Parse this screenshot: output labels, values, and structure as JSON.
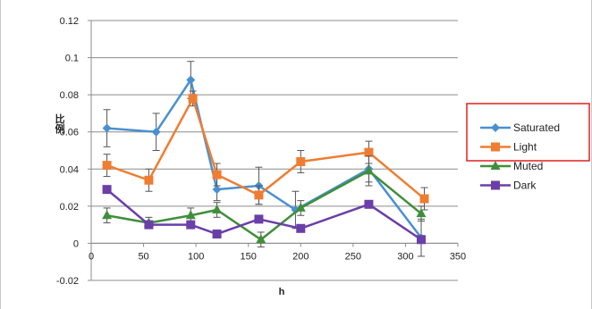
{
  "chart_data": {
    "type": "line",
    "title": "",
    "xlabel": "h",
    "ylabel": "比例",
    "xlim": [
      0,
      350
    ],
    "ylim": [
      -0.02,
      0.12
    ],
    "x_ticks": [
      0,
      50,
      100,
      150,
      200,
      250,
      300,
      350
    ],
    "y_ticks": [
      -0.02,
      0,
      0.02,
      0.04,
      0.06,
      0.08,
      0.1,
      0.12
    ],
    "y_tick_labels": [
      "-0.02",
      "0",
      "0.02",
      "0.04",
      "0.06",
      "0.08",
      "0.1",
      "0.12"
    ],
    "grid": "horizontal",
    "legend_position": "right",
    "series": [
      {
        "name": "Saturated",
        "color": "#4a90d0",
        "marker": "diamond",
        "x": [
          15,
          62,
          95,
          120,
          160,
          195,
          265,
          315
        ],
        "y": [
          0.062,
          0.06,
          0.088,
          0.029,
          0.031,
          0.018,
          0.04,
          0.003
        ],
        "err": [
          0.01,
          0.01,
          0.01,
          0.006,
          0.01,
          0.01,
          0.007,
          0.01
        ]
      },
      {
        "name": "Light",
        "color": "#ef7d31",
        "marker": "square",
        "x": [
          15,
          55,
          97,
          120,
          160,
          200,
          265,
          318
        ],
        "y": [
          0.042,
          0.034,
          0.078,
          0.037,
          0.026,
          0.044,
          0.049,
          0.024
        ],
        "err": [
          0.006,
          0.006,
          0.004,
          0.006,
          0.005,
          0.006,
          0.006,
          0.006
        ]
      },
      {
        "name": "Muted",
        "color": "#3f8f3a",
        "marker": "triangle",
        "x": [
          15,
          55,
          95,
          120,
          162,
          200,
          265,
          315
        ],
        "y": [
          0.015,
          0.011,
          0.015,
          0.018,
          0.002,
          0.019,
          0.039,
          0.016
        ],
        "err": [
          0.004,
          0.003,
          0.004,
          0.004,
          0.004,
          0.004,
          0.008,
          0.004
        ]
      },
      {
        "name": "Dark",
        "color": "#6a3fa8",
        "marker": "square",
        "x": [
          15,
          55,
          95,
          120,
          160,
          200,
          265,
          315
        ],
        "y": [
          0.029,
          0.01,
          0.01,
          0.005,
          0.013,
          0.008,
          0.021,
          0.002
        ],
        "err": [
          0,
          0,
          0,
          0,
          0,
          0,
          0,
          0
        ]
      }
    ],
    "legend_highlight_color": "#e02020"
  }
}
